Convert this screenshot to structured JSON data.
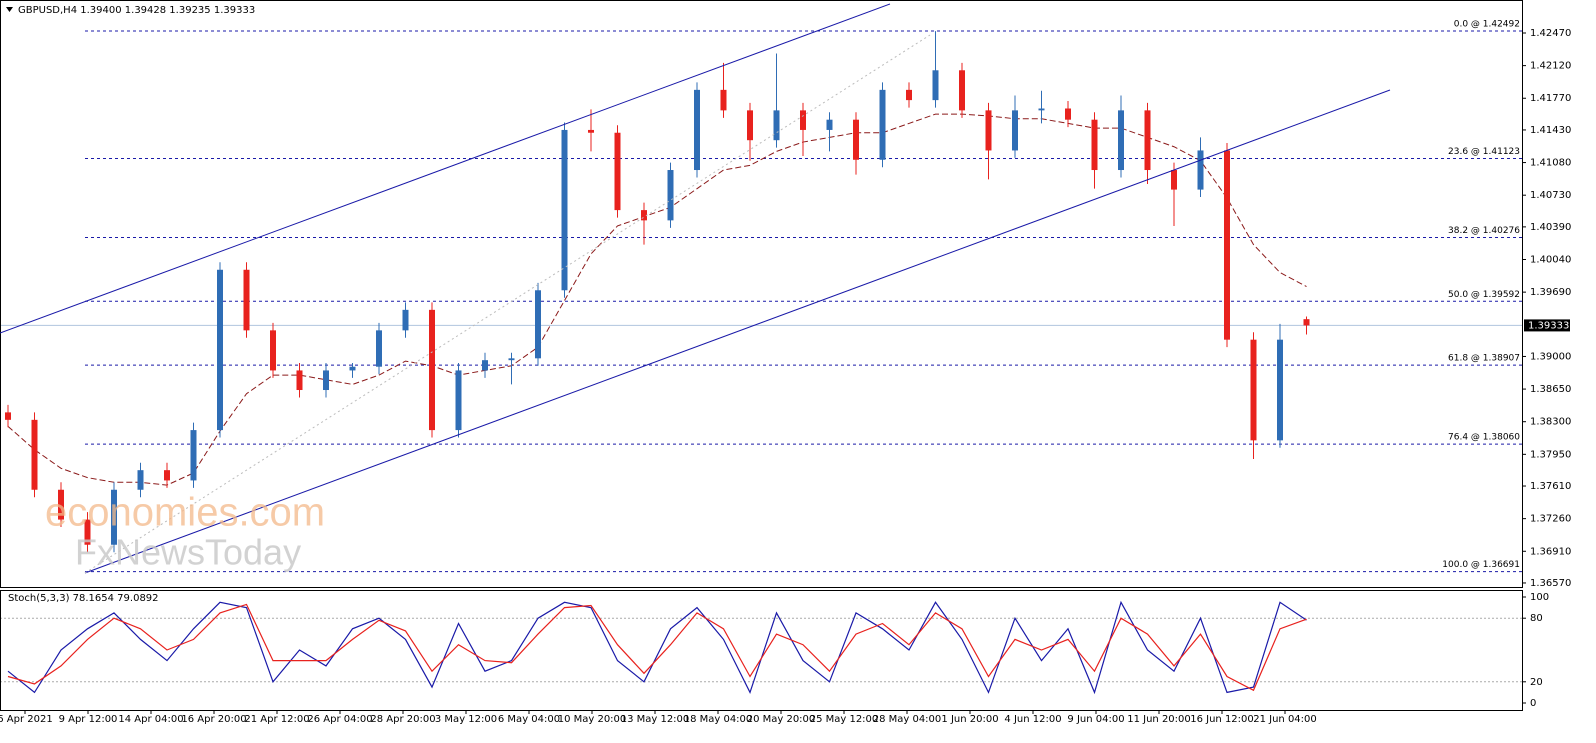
{
  "chart_data": [
    {
      "type": "candlestick",
      "title": "GBPUSD,H4  1.39400 1.39428 1.39235 1.39333",
      "watermark": [
        "economies.com",
        "FxNewsToday"
      ],
      "open": [
        1.384,
        1.3832,
        1.3757,
        1.3725,
        1.3698,
        1.3757,
        1.3778,
        1.3767,
        1.3821,
        1.3993,
        1.3928,
        1.3885,
        1.3864,
        1.3885,
        1.3889,
        1.3928,
        1.395,
        1.3821,
        1.3885,
        1.3896,
        1.3898,
        1.3971,
        1.4143,
        1.414,
        1.4057,
        1.4046,
        1.41,
        1.4186,
        1.4164,
        1.4132,
        1.4164,
        1.4143,
        1.4154,
        1.4111,
        1.4186,
        1.4175,
        1.4207,
        1.4164,
        1.4121,
        1.4164,
        1.4166,
        1.4154,
        1.41,
        1.4164,
        1.41,
        1.4079,
        1.4121,
        1.3918,
        1.381,
        1.394
      ],
      "high": [
        1.3848,
        1.384,
        1.3765,
        1.3733,
        1.3765,
        1.3786,
        1.3786,
        1.3829,
        1.4001,
        1.4001,
        1.3936,
        1.3893,
        1.3893,
        1.3893,
        1.3936,
        1.3958,
        1.3958,
        1.3893,
        1.3904,
        1.3904,
        1.3979,
        1.4151,
        1.4165,
        1.4148,
        1.4065,
        1.4108,
        1.4194,
        1.4215,
        1.4172,
        1.4225,
        1.4172,
        1.4162,
        1.4162,
        1.4194,
        1.4194,
        1.4249,
        1.4215,
        1.4172,
        1.418,
        1.4185,
        1.4174,
        1.4162,
        1.418,
        1.4172,
        1.4108,
        1.4135,
        1.4129,
        1.3926,
        1.3935,
        1.39428
      ],
      "low": [
        1.3824,
        1.3749,
        1.3717,
        1.369,
        1.369,
        1.3749,
        1.3759,
        1.3759,
        1.3813,
        1.392,
        1.3877,
        1.3856,
        1.3856,
        1.3877,
        1.3881,
        1.392,
        1.3813,
        1.3813,
        1.3877,
        1.387,
        1.389,
        1.3963,
        1.412,
        1.4049,
        1.402,
        1.4038,
        1.4092,
        1.4156,
        1.411,
        1.4124,
        1.4115,
        1.412,
        1.4095,
        1.4103,
        1.4167,
        1.4167,
        1.4156,
        1.409,
        1.4113,
        1.415,
        1.4146,
        1.408,
        1.4092,
        1.4085,
        1.404,
        1.4071,
        1.391,
        1.379,
        1.3802,
        1.39235
      ],
      "close": [
        1.3832,
        1.3757,
        1.3725,
        1.3698,
        1.3757,
        1.3778,
        1.3767,
        1.3821,
        1.3993,
        1.3928,
        1.3885,
        1.3864,
        1.3885,
        1.3889,
        1.3928,
        1.395,
        1.3821,
        1.3885,
        1.3896,
        1.3898,
        1.3971,
        1.4143,
        1.414,
        1.4057,
        1.4046,
        1.41,
        1.4186,
        1.4164,
        1.4132,
        1.4164,
        1.4143,
        1.4154,
        1.4111,
        1.4186,
        1.4175,
        1.4207,
        1.4164,
        1.4121,
        1.4164,
        1.4166,
        1.4154,
        1.41,
        1.4164,
        1.41,
        1.4079,
        1.4121,
        1.3918,
        1.381,
        1.3918,
        1.39333
      ],
      "up_color": "#2f6db5",
      "down_color": "#e8221e",
      "ma": {
        "color": "#8b1a1a",
        "values": [
          1.3825,
          1.38,
          1.378,
          1.377,
          1.3765,
          1.3765,
          1.3762,
          1.3775,
          1.382,
          1.386,
          1.388,
          1.388,
          1.3875,
          1.387,
          1.388,
          1.3895,
          1.389,
          1.388,
          1.3885,
          1.389,
          1.391,
          1.396,
          1.401,
          1.404,
          1.405,
          1.406,
          1.408,
          1.41,
          1.4105,
          1.412,
          1.413,
          1.4135,
          1.414,
          1.414,
          1.415,
          1.416,
          1.416,
          1.4158,
          1.4155,
          1.4155,
          1.415,
          1.4145,
          1.4145,
          1.4135,
          1.4125,
          1.411,
          1.407,
          1.402,
          1.399,
          1.3975
        ]
      },
      "levels": [
        {
          "value": 1.42492,
          "label": "0.0 @ 1.42492"
        },
        {
          "value": 1.41123,
          "label": "23.6 @ 1.41123"
        },
        {
          "value": 1.40276,
          "label": "38.2 @ 1.40276"
        },
        {
          "value": 1.39592,
          "label": "50.0 @ 1.39592"
        },
        {
          "value": 1.38907,
          "label": "61.8 @ 1.38907"
        },
        {
          "value": 1.3806,
          "label": "76.4 @ 1.38060"
        },
        {
          "value": 1.36691,
          "label": "100.0 @ 1.36691"
        }
      ],
      "last": {
        "value": 1.39333,
        "label": "1.39333"
      },
      "ylim": [
        1.36516,
        1.42824
      ],
      "yticks": [
        {
          "value": 1.4247,
          "label": "1.42470"
        },
        {
          "value": 1.4212,
          "label": "1.42120"
        },
        {
          "value": 1.4177,
          "label": "1.41770"
        },
        {
          "value": 1.4143,
          "label": "1.41430"
        },
        {
          "value": 1.4108,
          "label": "1.41080"
        },
        {
          "value": 1.4073,
          "label": "1.40730"
        },
        {
          "value": 1.4039,
          "label": "1.40390"
        },
        {
          "value": 1.4004,
          "label": "1.40040"
        },
        {
          "value": 1.3969,
          "label": "1.39690"
        },
        {
          "value": 1.39,
          "label": "1.39000"
        },
        {
          "value": 1.3865,
          "label": "1.38650"
        },
        {
          "value": 1.383,
          "label": "1.38300"
        },
        {
          "value": 1.3795,
          "label": "1.37950"
        },
        {
          "value": 1.3761,
          "label": "1.37610"
        },
        {
          "value": 1.3726,
          "label": "1.37260"
        },
        {
          "value": 1.3691,
          "label": "1.36910"
        },
        {
          "value": 1.3657,
          "label": "1.36570"
        }
      ]
    },
    {
      "type": "line",
      "title": "Stoch(5,3,3) 78.1654 79.0892",
      "series": [
        {
          "name": "%K",
          "color": "#1a1aa8",
          "values": [
            30,
            10,
            50,
            70,
            85,
            60,
            40,
            70,
            95,
            90,
            20,
            50,
            35,
            70,
            80,
            60,
            15,
            75,
            30,
            40,
            80,
            95,
            90,
            40,
            20,
            70,
            90,
            60,
            10,
            85,
            40,
            20,
            85,
            70,
            50,
            95,
            60,
            10,
            80,
            40,
            70,
            10,
            95,
            50,
            30,
            80,
            10,
            15,
            95,
            78.1654
          ]
        },
        {
          "name": "%D",
          "color": "#e8221e",
          "values": [
            25,
            18,
            35,
            60,
            80,
            70,
            50,
            60,
            85,
            93,
            40,
            40,
            40,
            60,
            78,
            68,
            30,
            55,
            40,
            38,
            65,
            90,
            92,
            55,
            28,
            55,
            85,
            70,
            25,
            65,
            55,
            30,
            65,
            75,
            55,
            85,
            70,
            25,
            60,
            50,
            60,
            30,
            80,
            65,
            35,
            65,
            25,
            12,
            70,
            79.0892
          ]
        }
      ],
      "ylim": [
        0,
        100
      ],
      "yticks": [
        0,
        20,
        80,
        100
      ],
      "x_labels": [
        "6 Apr 2021",
        "9 Apr 12:00",
        "14 Apr 04:00",
        "16 Apr 20:00",
        "21 Apr 12:00",
        "26 Apr 04:00",
        "28 Apr 20:00",
        "3 May 12:00",
        "6 May 04:00",
        "10 May 20:00",
        "13 May 12:00",
        "18 May 04:00",
        "20 May 20:00",
        "25 May 12:00",
        "28 May 04:00",
        "1 Jun 20:00",
        "4 Jun 12:00",
        "9 Jun 04:00",
        "11 Jun 20:00",
        "16 Jun 12:00",
        "21 Jun 04:00"
      ]
    }
  ]
}
